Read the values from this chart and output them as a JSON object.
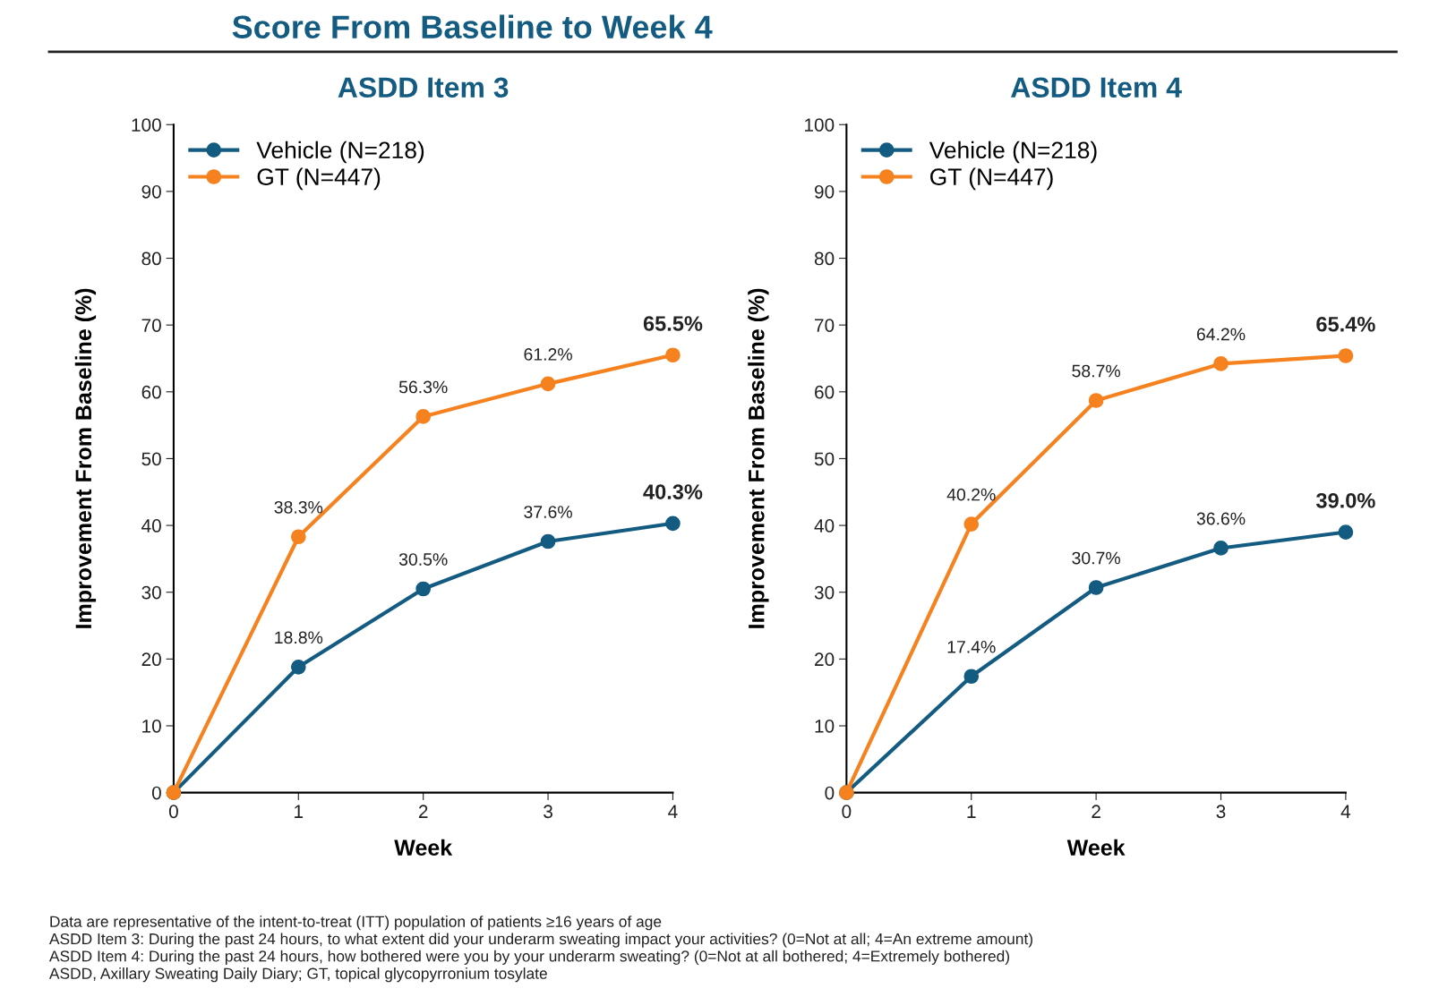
{
  "chart_data": [
    {
      "type": "line",
      "title": "ASDD Item 3",
      "xlabel": "Week",
      "ylabel": "Improvement From Baseline (%)",
      "x": [
        0,
        1,
        2,
        3,
        4
      ],
      "xlim": [
        0,
        4
      ],
      "xticks": [
        0,
        1,
        2,
        3,
        4
      ],
      "ylim": [
        0,
        100
      ],
      "yticks": [
        0,
        10,
        20,
        30,
        40,
        50,
        60,
        70,
        80,
        90,
        100
      ],
      "legend": "top left",
      "marker": "circle",
      "line_style": "solid",
      "grid": false,
      "series": [
        {
          "name": "Vehicle (N=218)",
          "color": "#135b80",
          "values": [
            0,
            18.8,
            30.5,
            37.6,
            40.3
          ],
          "value_labels": [
            null,
            "18.8%",
            "30.5%",
            "37.6%",
            "40.3%"
          ]
        },
        {
          "name": "GT (N=447)",
          "color": "#f5821f",
          "values": [
            0,
            38.3,
            56.3,
            61.2,
            65.5
          ],
          "value_labels": [
            null,
            "38.3%",
            "56.3%",
            "61.2%",
            "65.5%"
          ]
        }
      ],
      "annotations": [
        "Score From Baseline to Week 4",
        "Data are representative of the intent-to-treat (ITT) population of patients ≥16 years of age\nASDD Item 3: During the past 24 hours, to what extent did your underarm sweating impact your activities? (0=Not at all; 4=An extreme amount)\nASDD Item 4: During the past 24 hours, how bothered were you by your underarm sweating? (0=Not at all bothered; 4=Extremely bothered)\nASDD, Axillary Sweating Daily Diary; GT, topical glycopyrronium tosylate"
      ]
    },
    {
      "type": "line",
      "title": "ASDD Item 4",
      "xlabel": "Week",
      "ylabel": "Improvement From Baseline (%)",
      "x": [
        0,
        1,
        2,
        3,
        4
      ],
      "xlim": [
        0,
        4
      ],
      "xticks": [
        0,
        1,
        2,
        3,
        4
      ],
      "ylim": [
        0,
        100
      ],
      "yticks": [
        0,
        10,
        20,
        30,
        40,
        50,
        60,
        70,
        80,
        90,
        100
      ],
      "legend": "top left",
      "marker": "circle",
      "line_style": "solid",
      "grid": false,
      "series": [
        {
          "name": "Vehicle (N=218)",
          "color": "#135b80",
          "values": [
            0,
            17.4,
            30.7,
            36.6,
            39.0
          ],
          "value_labels": [
            null,
            "17.4%",
            "30.7%",
            "36.6%",
            "39.0%"
          ]
        },
        {
          "name": "GT (N=447)",
          "color": "#f5821f",
          "values": [
            0,
            40.2,
            58.7,
            64.2,
            65.4
          ],
          "value_labels": [
            null,
            "40.2%",
            "58.7%",
            "64.2%",
            "65.4%"
          ]
        }
      ]
    }
  ]
}
